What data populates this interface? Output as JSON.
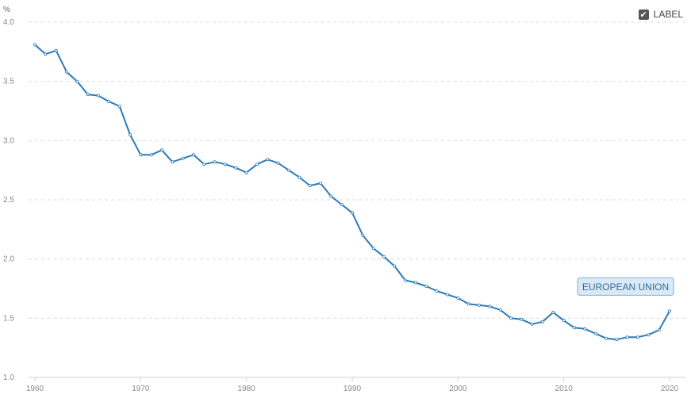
{
  "controls": {
    "label_toggle_text": "LABEL",
    "label_checked": true,
    "check_glyph": "✔"
  },
  "colors": {
    "series": "#2b7bb9",
    "label_bg": "#dbe9f5",
    "label_border": "#7fb0d8",
    "label_text": "#2b6ea3"
  },
  "chart_data": {
    "type": "line",
    "title": "",
    "xlabel": "",
    "ylabel": "%",
    "xlim": [
      1960,
      2021
    ],
    "ylim": [
      1.0,
      4.0
    ],
    "x_ticks": [
      1960,
      1970,
      1980,
      1990,
      2000,
      2010,
      2020
    ],
    "y_ticks": [
      1.0,
      1.5,
      2.0,
      2.5,
      3.0,
      3.5,
      4.0
    ],
    "y_tick_labels": [
      "1.0",
      "1.5",
      "2.0",
      "2.5",
      "3.0",
      "3.5",
      "4.0"
    ],
    "grid": true,
    "series": [
      {
        "name": "EUROPEAN UNION",
        "x": [
          1960,
          1961,
          1962,
          1963,
          1964,
          1965,
          1966,
          1967,
          1968,
          1969,
          1970,
          1971,
          1972,
          1973,
          1974,
          1975,
          1976,
          1977,
          1978,
          1979,
          1980,
          1981,
          1982,
          1983,
          1984,
          1985,
          1986,
          1987,
          1988,
          1989,
          1990,
          1991,
          1992,
          1993,
          1994,
          1995,
          1996,
          1997,
          1998,
          1999,
          2000,
          2001,
          2002,
          2003,
          2004,
          2005,
          2006,
          2007,
          2008,
          2009,
          2010,
          2011,
          2012,
          2013,
          2014,
          2015,
          2016,
          2017,
          2018,
          2019,
          2020
        ],
        "values": [
          3.81,
          3.73,
          3.76,
          3.58,
          3.5,
          3.39,
          3.38,
          3.33,
          3.29,
          3.05,
          2.88,
          2.88,
          2.92,
          2.82,
          2.85,
          2.88,
          2.8,
          2.82,
          2.8,
          2.77,
          2.73,
          2.8,
          2.84,
          2.81,
          2.75,
          2.69,
          2.62,
          2.64,
          2.53,
          2.46,
          2.39,
          2.2,
          2.09,
          2.02,
          1.94,
          1.82,
          1.8,
          1.77,
          1.73,
          1.7,
          1.67,
          1.62,
          1.61,
          1.6,
          1.57,
          1.5,
          1.49,
          1.45,
          1.47,
          1.55,
          1.48,
          1.42,
          1.41,
          1.37,
          1.33,
          1.32,
          1.34,
          1.34,
          1.36,
          1.4,
          1.56
        ]
      }
    ]
  }
}
